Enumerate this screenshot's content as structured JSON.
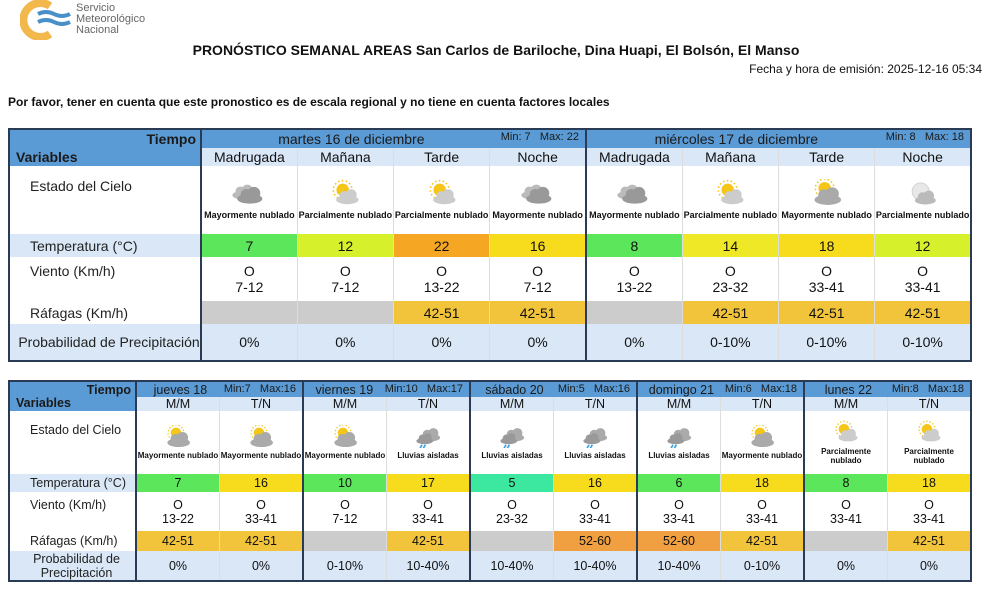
{
  "logo": {
    "text": [
      "Servicio",
      "Meteorológico",
      "Nacional"
    ]
  },
  "title": "PRONÓSTICO SEMANAL AREAS San Carlos de Bariloche, Dina Huapi, El Bolsón, El Manso",
  "emision": "Fecha y hora de emisión: 2025-12-16 05:34",
  "note": "Por favor, tener en cuenta que este pronostico es de escala regional y no tiene en cuenta factores locales",
  "labels": {
    "tiempo": "Tiempo",
    "variables": "Variables",
    "cielo": "Estado del Cielo",
    "temp": "Temperatura (°C)",
    "viento": "Viento (Km/h)",
    "rafagas": "Ráfagas (Km/h)",
    "prob": "Probabilidad de Precipitación"
  },
  "colors": {
    "header": "#5b9bd5",
    "subheader": "#d9e7f7",
    "gust_42_51": "#f2c43c",
    "gust_52_60": "#f0a040",
    "empty": "#cccccc"
  },
  "table1": {
    "days": [
      {
        "name": "martes 16 de diciembre",
        "min": "Min:  7",
        "max": "Max:  22",
        "periods": [
          {
            "label": "Madrugada",
            "icon": "mostly-cloudy",
            "desc": "Mayormente nublado",
            "temp": "7",
            "temp_color": "#5ce65c",
            "wind_dir": "O",
            "wind": "7-12",
            "gust": "",
            "gust_color": "#cccccc",
            "prob": "0%"
          },
          {
            "label": "Mañana",
            "icon": "partly-cloudy",
            "desc": "Parcialmente nublado",
            "temp": "12",
            "temp_color": "#d7f02c",
            "wind_dir": "O",
            "wind": "7-12",
            "gust": "",
            "gust_color": "#cccccc",
            "prob": "0%"
          },
          {
            "label": "Tarde",
            "icon": "partly-cloudy",
            "desc": "Parcialmente nublado",
            "temp": "22",
            "temp_color": "#f5a623",
            "wind_dir": "O",
            "wind": "13-22",
            "gust": "42-51",
            "gust_color": "#f2c43c",
            "prob": "0%"
          },
          {
            "label": "Noche",
            "icon": "mostly-cloudy",
            "desc": "Mayormente nublado",
            "temp": "16",
            "temp_color": "#f7dc1e",
            "wind_dir": "O",
            "wind": "7-12",
            "gust": "42-51",
            "gust_color": "#f2c43c",
            "prob": "0%"
          }
        ]
      },
      {
        "name": "miércoles 17 de diciembre",
        "min": "Min:  8",
        "max": "Max:  18",
        "periods": [
          {
            "label": "Madrugada",
            "icon": "mostly-cloudy",
            "desc": "Mayormente nublado",
            "temp": "8",
            "temp_color": "#5ce65c",
            "wind_dir": "O",
            "wind": "13-22",
            "gust": "",
            "gust_color": "#cccccc",
            "prob": "0%"
          },
          {
            "label": "Mañana",
            "icon": "partly-cloudy",
            "desc": "Parcialmente nublado",
            "temp": "14",
            "temp_color": "#eee826",
            "wind_dir": "O",
            "wind": "23-32",
            "gust": "42-51",
            "gust_color": "#f2c43c",
            "prob": "0-10%"
          },
          {
            "label": "Tarde",
            "icon": "mostly-cloudy-sun",
            "desc": "Mayormente nublado",
            "temp": "18",
            "temp_color": "#f7dc1e",
            "wind_dir": "O",
            "wind": "33-41",
            "gust": "42-51",
            "gust_color": "#f2c43c",
            "prob": "0-10%"
          },
          {
            "label": "Noche",
            "icon": "partly-cloudy-night",
            "desc": "Parcialmente nublado",
            "temp": "12",
            "temp_color": "#d7f02c",
            "wind_dir": "O",
            "wind": "33-41",
            "gust": "42-51",
            "gust_color": "#f2c43c",
            "prob": "0-10%"
          }
        ]
      }
    ]
  },
  "table2": {
    "days": [
      {
        "name": "jueves 18",
        "min": "Min:7",
        "max": "Max:16",
        "periods": [
          {
            "label": "M/M",
            "icon": "mostly-cloudy-sun",
            "desc": "Mayormente nublado",
            "temp": "7",
            "temp_color": "#5ce65c",
            "wind_dir": "O",
            "wind": "13-22",
            "gust": "42-51",
            "gust_color": "#f2c43c",
            "prob": "0%"
          },
          {
            "label": "T/N",
            "icon": "mostly-cloudy-sun",
            "desc": "Mayormente nublado",
            "temp": "16",
            "temp_color": "#f7dc1e",
            "wind_dir": "O",
            "wind": "33-41",
            "gust": "42-51",
            "gust_color": "#f2c43c",
            "prob": "0%"
          }
        ]
      },
      {
        "name": "viernes 19",
        "min": "Min:10",
        "max": "Max:17",
        "periods": [
          {
            "label": "M/M",
            "icon": "mostly-cloudy-sun",
            "desc": "Mayormente nublado",
            "temp": "10",
            "temp_color": "#5ce65c",
            "wind_dir": "O",
            "wind": "7-12",
            "gust": "",
            "gust_color": "#cccccc",
            "prob": "0-10%"
          },
          {
            "label": "T/N",
            "icon": "rain",
            "desc": "Lluvias aisladas",
            "temp": "17",
            "temp_color": "#f7dc1e",
            "wind_dir": "O",
            "wind": "33-41",
            "gust": "42-51",
            "gust_color": "#f2c43c",
            "prob": "10-40%"
          }
        ]
      },
      {
        "name": "sábado 20",
        "min": "Min:5",
        "max": "Max:16",
        "periods": [
          {
            "label": "M/M",
            "icon": "rain",
            "desc": "Lluvias aisladas",
            "temp": "5",
            "temp_color": "#3ce8a0",
            "wind_dir": "O",
            "wind": "23-32",
            "gust": "",
            "gust_color": "#cccccc",
            "prob": "10-40%"
          },
          {
            "label": "T/N",
            "icon": "rain",
            "desc": "Lluvias aisladas",
            "temp": "16",
            "temp_color": "#f7dc1e",
            "wind_dir": "O",
            "wind": "33-41",
            "gust": "52-60",
            "gust_color": "#f0a040",
            "prob": "10-40%"
          }
        ]
      },
      {
        "name": "domingo 21",
        "min": "Min:6",
        "max": "Max:18",
        "periods": [
          {
            "label": "M/M",
            "icon": "rain",
            "desc": "Lluvias aisladas",
            "temp": "6",
            "temp_color": "#5ce65c",
            "wind_dir": "O",
            "wind": "33-41",
            "gust": "52-60",
            "gust_color": "#f0a040",
            "prob": "10-40%"
          },
          {
            "label": "T/N",
            "icon": "mostly-cloudy-sun",
            "desc": "Mayormente nublado",
            "temp": "18",
            "temp_color": "#f7dc1e",
            "wind_dir": "O",
            "wind": "33-41",
            "gust": "42-51",
            "gust_color": "#f2c43c",
            "prob": "0-10%"
          }
        ]
      },
      {
        "name": "lunes 22",
        "min": "Min:8",
        "max": "Max:18",
        "periods": [
          {
            "label": "M/M",
            "icon": "partly-cloudy",
            "desc": "Parcialmente nublado",
            "temp": "8",
            "temp_color": "#5ce65c",
            "wind_dir": "O",
            "wind": "33-41",
            "gust": "",
            "gust_color": "#cccccc",
            "prob": "0%"
          },
          {
            "label": "T/N",
            "icon": "partly-cloudy",
            "desc": "Parcialmente nublado",
            "temp": "18",
            "temp_color": "#f7dc1e",
            "wind_dir": "O",
            "wind": "33-41",
            "gust": "42-51",
            "gust_color": "#f2c43c",
            "prob": "0%"
          }
        ]
      }
    ]
  }
}
